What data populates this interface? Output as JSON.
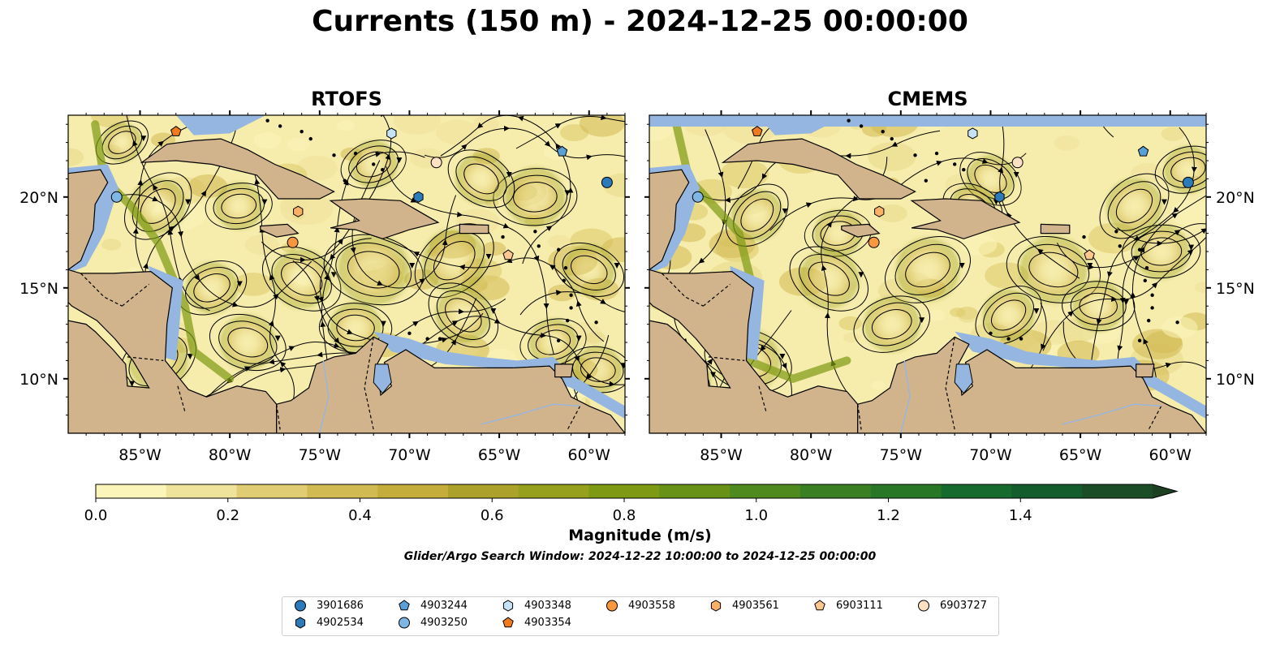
{
  "title": "Currents (150 m) - 2024-12-25 00:00:00",
  "panels": [
    {
      "title": "RTOFS"
    },
    {
      "title": "CMEMS"
    }
  ],
  "map": {
    "lon_range": [
      -89,
      -58
    ],
    "lat_range": [
      7,
      24.5
    ],
    "lon_ticks": [
      "85°W",
      "80°W",
      "75°W",
      "70°W",
      "65°W",
      "60°W"
    ],
    "lat_ticks": [
      "20°N",
      "15°N",
      "10°N"
    ],
    "colors": {
      "ocean": "#95b6e0",
      "land": "#d2b48c",
      "coast": "#000000"
    }
  },
  "colorbar": {
    "label": "Magnitude (m/s)",
    "ticks": [
      "0.0",
      "0.2",
      "0.4",
      "0.6",
      "0.8",
      "1.0",
      "1.2",
      "1.4"
    ],
    "range": [
      0,
      1.6
    ],
    "extend": "max",
    "colors": [
      "#fbf5b9",
      "#efe29a",
      "#e0cd73",
      "#d2ba52",
      "#c4ad3b",
      "#aca12a",
      "#96a01c",
      "#7e9a14",
      "#689216",
      "#4f8a1f",
      "#3b7f23",
      "#277727",
      "#176a2e",
      "#135c2c",
      "#1b4e27",
      "#1d3f22"
    ]
  },
  "search_window": "Glider/Argo Search Window: 2024-12-22 10:00:00 to 2024-12-25 00:00:00",
  "legend": [
    {
      "id": "3901686",
      "shape": "circle",
      "color": "#2b7bba"
    },
    {
      "id": "4902534",
      "shape": "hexagon",
      "color": "#2b7bba"
    },
    {
      "id": "4903244",
      "shape": "pentagon",
      "color": "#5aa0d8"
    },
    {
      "id": "4903250",
      "shape": "circle",
      "color": "#7fb6e4"
    },
    {
      "id": "4903348",
      "shape": "hexagon",
      "color": "#c6e2f6"
    },
    {
      "id": "4903354",
      "shape": "pentagon",
      "color": "#f07b1c"
    },
    {
      "id": "4903558",
      "shape": "circle",
      "color": "#f8973d"
    },
    {
      "id": "4903561",
      "shape": "hexagon",
      "color": "#fbb067"
    },
    {
      "id": "6903111",
      "shape": "pentagon",
      "color": "#fcc78f"
    },
    {
      "id": "6903727",
      "shape": "circle",
      "color": "#fde1c3"
    }
  ],
  "markers": [
    {
      "id": "4903354",
      "lon": -83.0,
      "lat": 23.6
    },
    {
      "id": "4903348",
      "lon": -71.0,
      "lat": 23.5
    },
    {
      "id": "4903244",
      "lon": -61.5,
      "lat": 22.5
    },
    {
      "id": "6903727",
      "lon": -68.5,
      "lat": 21.9
    },
    {
      "id": "3901686",
      "lon": -59.0,
      "lat": 20.8
    },
    {
      "id": "4903250",
      "lon": -86.3,
      "lat": 20.0
    },
    {
      "id": "4902534",
      "lon": -69.5,
      "lat": 20.0
    },
    {
      "id": "4903561",
      "lon": -76.2,
      "lat": 19.2
    },
    {
      "id": "4903558",
      "lon": -76.5,
      "lat": 17.5
    },
    {
      "id": "6903111",
      "lon": -64.5,
      "lat": 16.8
    }
  ]
}
